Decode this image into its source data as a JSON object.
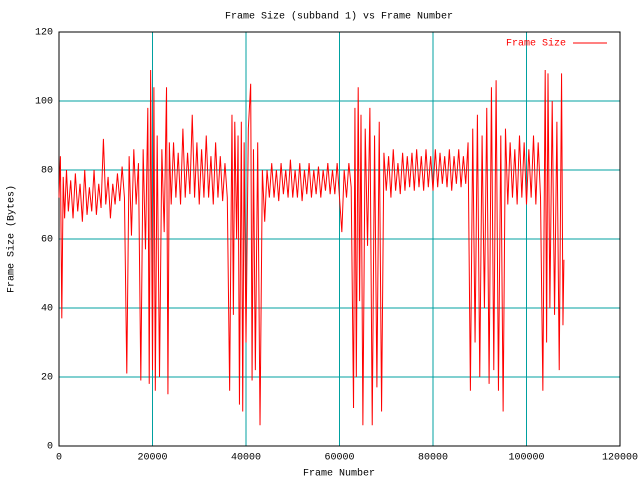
{
  "chart_data": {
    "type": "line",
    "title": "Frame Size (subband 1) vs Frame Number",
    "x_label": "Frame Number",
    "y_label": "Frame Size (Bytes)",
    "xlim": [
      0,
      120000
    ],
    "xticks": [
      0,
      20000,
      40000,
      60000,
      80000,
      100000,
      120000
    ],
    "ylim": [
      0,
      120
    ],
    "yticks": [
      0,
      20,
      40,
      60,
      80,
      100,
      120
    ],
    "grid": true,
    "legend": "upper right",
    "x": [
      0,
      300,
      600,
      900,
      1200,
      1600,
      2000,
      2500,
      3000,
      3500,
      4000,
      4500,
      5000,
      5500,
      6000,
      6500,
      7000,
      7500,
      8000,
      8500,
      9000,
      9500,
      10000,
      10500,
      11000,
      11500,
      12000,
      12500,
      13000,
      13500,
      14000,
      14500,
      15000,
      15500,
      16000,
      16500,
      17000,
      17500,
      18000,
      18500,
      19000,
      19300,
      19600,
      20000,
      20300,
      20600,
      21000,
      21500,
      22000,
      22500,
      23000,
      23300,
      23600,
      24000,
      24500,
      25000,
      25500,
      26000,
      26500,
      27000,
      27500,
      28000,
      28500,
      29000,
      29500,
      30000,
      30500,
      31000,
      31500,
      32000,
      32500,
      33000,
      33500,
      34000,
      34500,
      35000,
      35500,
      36000,
      36500,
      37000,
      37300,
      37600,
      38000,
      38300,
      38600,
      39000,
      39300,
      39600,
      40000,
      40500,
      41000,
      41300,
      41600,
      42000,
      42500,
      43000,
      43500,
      44000,
      44500,
      45000,
      45500,
      46000,
      46500,
      47000,
      47500,
      48000,
      48500,
      49000,
      49500,
      50000,
      50500,
      51000,
      51500,
      52000,
      52500,
      53000,
      53500,
      54000,
      54500,
      55000,
      55500,
      56000,
      56500,
      57000,
      57500,
      58000,
      58500,
      59000,
      59500,
      60000,
      60500,
      61000,
      61500,
      62000,
      62500,
      63000,
      63300,
      63600,
      64000,
      64300,
      64600,
      65000,
      65500,
      66000,
      66500,
      67000,
      67500,
      68000,
      68500,
      69000,
      69500,
      70000,
      70500,
      71000,
      71500,
      72000,
      72500,
      73000,
      73500,
      74000,
      74500,
      75000,
      75500,
      76000,
      76500,
      77000,
      77500,
      78000,
      78500,
      79000,
      79500,
      80000,
      80500,
      81000,
      81500,
      82000,
      82500,
      83000,
      83500,
      84000,
      84500,
      85000,
      85500,
      86000,
      86500,
      87000,
      87500,
      88000,
      88500,
      89000,
      89500,
      90000,
      90500,
      91000,
      91500,
      92000,
      92500,
      93000,
      93500,
      94000,
      94500,
      95000,
      95500,
      96000,
      96500,
      97000,
      97500,
      98000,
      98500,
      99000,
      99500,
      100000,
      100500,
      101000,
      101500,
      102000,
      102500,
      103000,
      103500,
      104000,
      104300,
      104600,
      105000,
      105500,
      106000,
      106500,
      107000,
      107500,
      107800,
      108000
    ],
    "series": [
      {
        "name": "Frame Size",
        "color": "#ff0000",
        "values": [
          72,
          84,
          37,
          78,
          66,
          80,
          68,
          77,
          66,
          79,
          68,
          76,
          65,
          80,
          67,
          75,
          68,
          80,
          67,
          76,
          69,
          89,
          70,
          78,
          66,
          76,
          70,
          79,
          71,
          81,
          72,
          21,
          84,
          61,
          86,
          70,
          82,
          19,
          86,
          57,
          98,
          18,
          109,
          22,
          104,
          16,
          90,
          20,
          86,
          62,
          104,
          15,
          88,
          70,
          88,
          72,
          85,
          70,
          92,
          72,
          85,
          73,
          96,
          72,
          88,
          70,
          86,
          72,
          90,
          72,
          84,
          70,
          88,
          72,
          84,
          71,
          82,
          72,
          16,
          96,
          38,
          94,
          60,
          90,
          12,
          94,
          10,
          88,
          30,
          92,
          105,
          19,
          86,
          22,
          88,
          6,
          80,
          65,
          80,
          72,
          82,
          72,
          80,
          71,
          82,
          73,
          80,
          72,
          83,
          72,
          80,
          72,
          82,
          71,
          80,
          73,
          82,
          72,
          80,
          73,
          81,
          72,
          80,
          74,
          82,
          73,
          80,
          73,
          82,
          72,
          62,
          80,
          72,
          82,
          75,
          11,
          98,
          20,
          104,
          42,
          96,
          6,
          92,
          58,
          98,
          6,
          90,
          17,
          94,
          10,
          85,
          74,
          84,
          72,
          86,
          74,
          82,
          73,
          85,
          74,
          84,
          75,
          85,
          74,
          86,
          75,
          84,
          74,
          86,
          75,
          84,
          74,
          86,
          75,
          85,
          76,
          84,
          75,
          86,
          74,
          84,
          76,
          86,
          75,
          84,
          76,
          88,
          16,
          92,
          30,
          96,
          20,
          90,
          40,
          98,
          18,
          104,
          22,
          106,
          16,
          90,
          10,
          92,
          70,
          88,
          72,
          86,
          70,
          90,
          72,
          88,
          70,
          86,
          72,
          90,
          70,
          88,
          72,
          16,
          109,
          30,
          108,
          40,
          100,
          38,
          94,
          22,
          108,
          35,
          54
        ]
      }
    ]
  }
}
